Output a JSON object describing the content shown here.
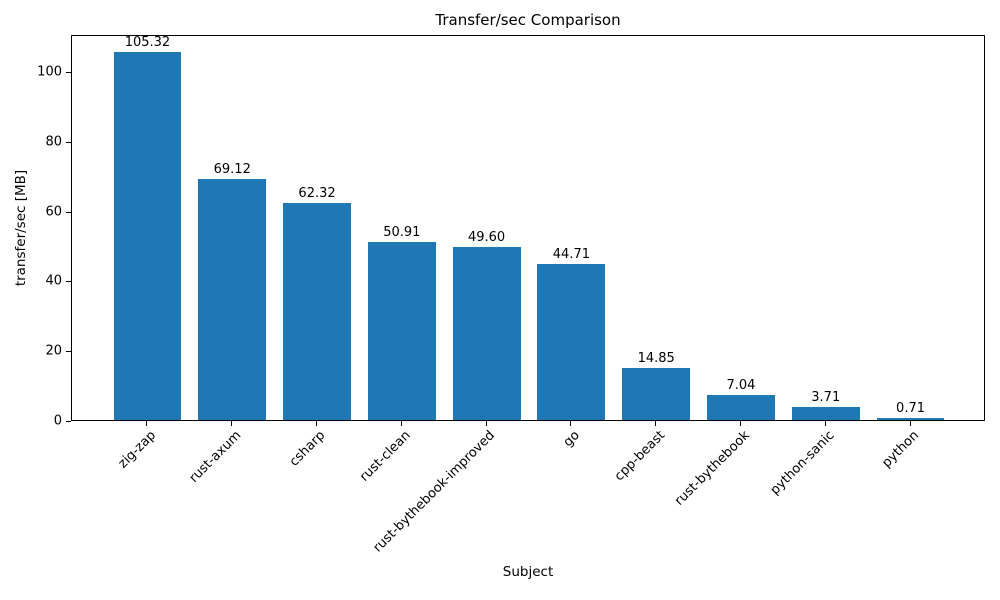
{
  "chart_data": {
    "type": "bar",
    "title": "Transfer/sec Comparison",
    "xlabel": "Subject",
    "ylabel": "transfer/sec [MB]",
    "categories": [
      "zig-zap",
      "rust-axum",
      "csharp",
      "rust-clean",
      "rust-bythebook-improved",
      "go",
      "cpp-beast",
      "rust-bythebook",
      "python-sanic",
      "python"
    ],
    "values": [
      105.32,
      69.12,
      62.32,
      50.91,
      49.6,
      44.71,
      14.85,
      7.04,
      3.71,
      0.71
    ],
    "value_labels": [
      "105.32",
      "69.12",
      "62.32",
      "50.91",
      "49.60",
      "44.71",
      "14.85",
      "7.04",
      "3.71",
      "0.71"
    ],
    "yticks": [
      0,
      20,
      40,
      60,
      80,
      100
    ],
    "ylim": [
      0,
      110.6
    ],
    "xlim": [
      -0.89,
      9.89
    ],
    "bar_width_units": 0.8,
    "bar_color": "#1f77b4",
    "grid": false,
    "legend": "none",
    "x_tick_rotation_deg": 45
  }
}
